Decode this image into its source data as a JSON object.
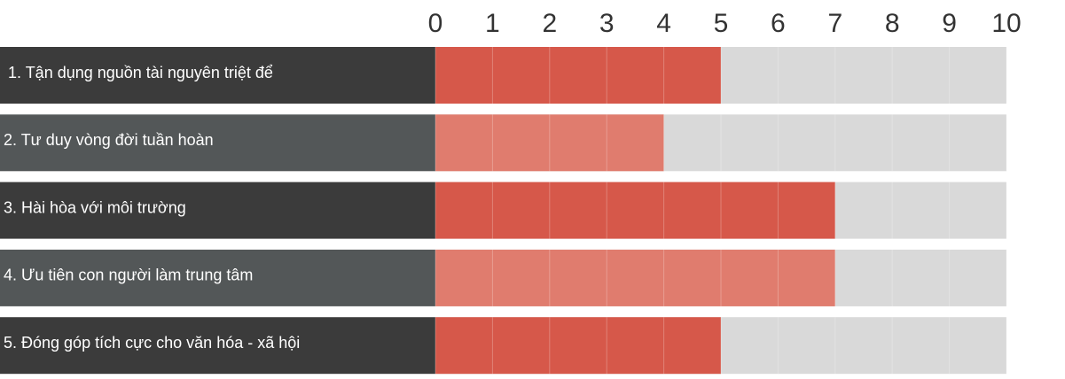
{
  "chart_data": {
    "type": "bar",
    "orientation": "horizontal",
    "categories": [
      "1. Tận dụng nguồn tài nguyên triệt để",
      "2. Tư duy vòng đời tuần hoàn",
      "3. Hài hòa với môi trường",
      "4. Ưu tiên con người làm trung tâm",
      "5. Đóng góp tích cực cho văn hóa - xã hội"
    ],
    "values": [
      5,
      4,
      7,
      7,
      5
    ],
    "colors": [
      "#d6584a",
      "#e07c6e",
      "#d6584a",
      "#e07c6e",
      "#d6584a"
    ],
    "label_colors": [
      "#3b3b3b",
      "#535758",
      "#3b3b3b",
      "#535758",
      "#3b3b3b"
    ],
    "track_color": "#d9d9d9",
    "xlim": [
      0,
      10
    ],
    "xticks": [
      0,
      1,
      2,
      3,
      4,
      5,
      6,
      7,
      8,
      9,
      10
    ],
    "grid": true
  }
}
